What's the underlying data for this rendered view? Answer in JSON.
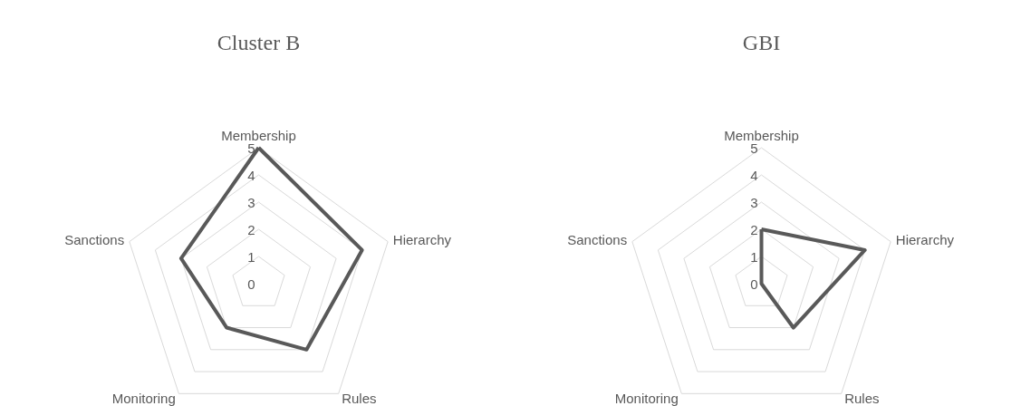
{
  "chart_data": [
    {
      "type": "radar",
      "title": "Cluster B",
      "categories": [
        "Membership",
        "Hierarchy",
        "Rules",
        "Monitoring",
        "Sanctions"
      ],
      "series": [
        {
          "color": "#595959",
          "values": [
            5,
            4,
            3,
            2,
            3
          ]
        }
      ],
      "ylim": [
        0,
        5
      ],
      "yticks": [
        0,
        1,
        2,
        3,
        4,
        5
      ],
      "grid": true
    },
    {
      "type": "radar",
      "title": "GBI",
      "categories": [
        "Membership",
        "Hierarchy",
        "Rules",
        "Monitoring",
        "Sanctions"
      ],
      "series": [
        {
          "color": "#595959",
          "values": [
            2,
            4,
            2,
            0,
            0
          ]
        }
      ],
      "ylim": [
        0,
        5
      ],
      "yticks": [
        0,
        1,
        2,
        3,
        4,
        5
      ],
      "grid": true
    }
  ]
}
